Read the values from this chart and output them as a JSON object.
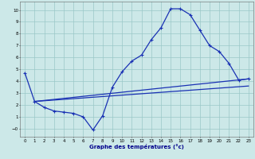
{
  "xlabel": "Graphe des températures (°c)",
  "xlim": [
    -0.5,
    23.5
  ],
  "ylim": [
    -0.7,
    10.7
  ],
  "xticks": [
    0,
    1,
    2,
    3,
    4,
    5,
    6,
    7,
    8,
    9,
    10,
    11,
    12,
    13,
    14,
    15,
    16,
    17,
    18,
    19,
    20,
    21,
    22,
    23
  ],
  "yticks": [
    0,
    1,
    2,
    3,
    4,
    5,
    6,
    7,
    8,
    9,
    10
  ],
  "bg_color": "#cce8e8",
  "grid_color": "#9ac8c8",
  "line_color": "#1a32b4",
  "line1_x": [
    0,
    1,
    2,
    3,
    4,
    5,
    6,
    7,
    8,
    9,
    10,
    11,
    12,
    13,
    14,
    15,
    16,
    17,
    18,
    19,
    20,
    21,
    22,
    23
  ],
  "line1_y": [
    4.7,
    2.3,
    1.8,
    1.5,
    1.4,
    1.3,
    1.0,
    -0.1,
    1.1,
    3.5,
    4.8,
    5.7,
    6.2,
    7.5,
    8.5,
    10.1,
    10.1,
    9.6,
    8.3,
    7.0,
    6.5,
    5.5,
    4.1,
    4.2
  ],
  "line2_x": [
    1,
    23
  ],
  "line2_y": [
    2.3,
    4.2
  ],
  "line3_x": [
    1,
    23
  ],
  "line3_y": [
    2.3,
    3.6
  ]
}
